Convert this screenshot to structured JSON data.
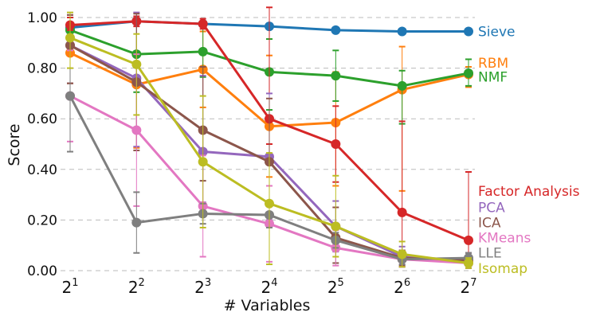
{
  "chart_data": {
    "type": "line",
    "xlabel": "# Variables",
    "ylabel": "Score",
    "xscale": "log2",
    "x": [
      2,
      4,
      8,
      16,
      32,
      64,
      128
    ],
    "x_tick_base": "2",
    "x_tick_exponents": [
      "1",
      "2",
      "3",
      "4",
      "5",
      "6",
      "7"
    ],
    "ylim": [
      0,
      1.04
    ],
    "y_ticks": [
      0,
      0.2,
      0.4,
      0.6,
      0.8,
      1.0
    ],
    "y_tick_labels": [
      "0.00",
      "0.20",
      "0.40",
      "0.60",
      "0.80",
      "1.00"
    ],
    "grid": "horizontal dashed",
    "legend": "inline labels at right end of lines",
    "series": [
      {
        "name": "Sieve",
        "color": "#1f77b4",
        "values": [
          0.96,
          0.985,
          0.975,
          0.965,
          0.95,
          0.945,
          0.945
        ],
        "err_low": [
          0.01,
          0.01,
          0.01,
          0.01,
          0.005,
          0.005,
          0.005
        ],
        "err_high": [
          0.01,
          0.01,
          0.01,
          0.01,
          0.005,
          0.005,
          0.005
        ]
      },
      {
        "name": "RBM",
        "color": "#ff7f0e",
        "values": [
          0.86,
          0.735,
          0.795,
          0.57,
          0.585,
          0.715,
          0.775
        ],
        "err_low": [
          0.12,
          0.25,
          0.15,
          0.2,
          0.25,
          0.4,
          0.05
        ],
        "err_high": [
          0.12,
          0.25,
          0.15,
          0.28,
          0.2,
          0.17,
          0.03
        ]
      },
      {
        "name": "NMF",
        "color": "#2ca02c",
        "values": [
          0.95,
          0.855,
          0.865,
          0.785,
          0.77,
          0.73,
          0.78
        ],
        "err_low": [
          0.05,
          0.15,
          0.1,
          0.15,
          0.1,
          0.15,
          0.05
        ],
        "err_high": [
          0.05,
          0.13,
          0.1,
          0.13,
          0.1,
          0.06,
          0.055
        ]
      },
      {
        "name": "Factor Analysis",
        "color": "#d62728",
        "values": [
          0.97,
          0.985,
          0.975,
          0.6,
          0.5,
          0.23,
          0.12
        ],
        "err_low": [
          0.02,
          0.02,
          0.02,
          0.1,
          0.15,
          0.15,
          0.1
        ],
        "err_high": [
          0.03,
          0.02,
          0.02,
          0.44,
          0.15,
          0.36,
          0.27
        ]
      },
      {
        "name": "PCA",
        "color": "#9467bd",
        "values": [
          0.89,
          0.76,
          0.47,
          0.45,
          0.175,
          0.055,
          0.04
        ],
        "err_low": [
          0.15,
          0.27,
          0.2,
          0.25,
          0.1,
          0.04,
          0.03
        ],
        "err_high": [
          0.12,
          0.26,
          0.3,
          0.25,
          0.1,
          0.04,
          0.03
        ]
      },
      {
        "name": "ICA",
        "color": "#8c564b",
        "values": [
          0.89,
          0.745,
          0.555,
          0.43,
          0.13,
          0.05,
          0.04
        ],
        "err_low": [
          0.15,
          0.27,
          0.2,
          0.25,
          0.1,
          0.03,
          0.03
        ],
        "err_high": [
          0.12,
          0.27,
          0.25,
          0.25,
          0.12,
          0.03,
          0.03
        ]
      },
      {
        "name": "KMeans",
        "color": "#e377c2",
        "values": [
          0.69,
          0.555,
          0.255,
          0.185,
          0.09,
          0.045,
          0.03
        ],
        "err_low": [
          0.18,
          0.3,
          0.2,
          0.15,
          0.07,
          0.03,
          0.02
        ],
        "err_high": [
          0.18,
          0.3,
          0.2,
          0.15,
          0.07,
          0.03,
          0.02
        ]
      },
      {
        "name": "LLE",
        "color": "#7f7f7f",
        "values": [
          0.69,
          0.19,
          0.225,
          0.22,
          0.12,
          0.045,
          0.05
        ],
        "err_low": [
          0.22,
          0.12,
          0.04,
          0.05,
          0.03,
          0.02,
          0.02
        ],
        "err_high": [
          0.22,
          0.12,
          0.04,
          0.05,
          0.03,
          0.02,
          0.02
        ]
      },
      {
        "name": "Isomap",
        "color": "#bcbd22",
        "values": [
          0.92,
          0.815,
          0.43,
          0.265,
          0.175,
          0.065,
          0.03
        ],
        "err_low": [
          0.12,
          0.2,
          0.26,
          0.24,
          0.12,
          0.05,
          0.02
        ],
        "err_high": [
          0.1,
          0.12,
          0.26,
          0.2,
          0.2,
          0.05,
          0.02
        ]
      }
    ],
    "series_label_order_y": [
      {
        "name": "Sieve",
        "y": 0.945
      },
      {
        "name": "RBM",
        "y": 0.82
      },
      {
        "name": "NMF",
        "y": 0.765
      },
      {
        "name": "Factor Analysis",
        "y": 0.315
      },
      {
        "name": "PCA",
        "y": 0.25
      },
      {
        "name": "ICA",
        "y": 0.19
      },
      {
        "name": "KMeans",
        "y": 0.13
      },
      {
        "name": "LLE",
        "y": 0.07
      },
      {
        "name": "Isomap",
        "y": 0.01
      }
    ]
  }
}
